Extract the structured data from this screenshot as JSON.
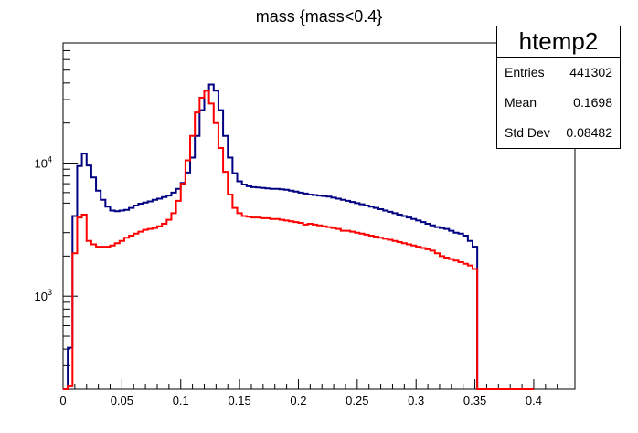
{
  "chart_data": {
    "type": "line",
    "title": "mass {mass<0.4}",
    "xlabel": "",
    "ylabel": "",
    "xlim": [
      0,
      0.435
    ],
    "ylim": [
      200,
      80000
    ],
    "y_scale": "log",
    "x_ticks": [
      0,
      0.05,
      0.1,
      0.15,
      0.2,
      0.25,
      0.3,
      0.35,
      0.4
    ],
    "x_tick_labels": [
      "0",
      "0.05",
      "0.1",
      "0.15",
      "0.2",
      "0.25",
      "0.3",
      "0.35",
      "0.4"
    ],
    "y_major_ticks": [
      1000,
      10000
    ],
    "y_tick_labels": [
      {
        "base": "10",
        "exp": "3"
      },
      {
        "base": "10",
        "exp": "4"
      }
    ],
    "grid": false,
    "bin_width": 0.004,
    "series": [
      {
        "color": "#000080",
        "values": [
          150,
          410,
          4000,
          9500,
          11800,
          9600,
          7800,
          6200,
          5300,
          4700,
          4400,
          4350,
          4400,
          4450,
          4600,
          4800,
          4950,
          5050,
          5150,
          5300,
          5400,
          5550,
          5700,
          6000,
          6400,
          7100,
          8500,
          11000,
          16000,
          25000,
          35000,
          39000,
          35000,
          25000,
          16000,
          11000,
          8400,
          7300,
          6900,
          6700,
          6600,
          6550,
          6500,
          6450,
          6400,
          6400,
          6350,
          6300,
          6200,
          6100,
          6000,
          5900,
          5800,
          5750,
          5700,
          5650,
          5600,
          5500,
          5400,
          5300,
          5200,
          5100,
          5000,
          4900,
          4800,
          4700,
          4600,
          4500,
          4400,
          4300,
          4200,
          4100,
          4000,
          3900,
          3800,
          3700,
          3600,
          3500,
          3400,
          3300,
          3250,
          3200,
          3100,
          3000,
          2950,
          2850,
          2600,
          2350,
          0,
          0,
          0,
          0,
          0,
          0,
          0,
          0,
          0,
          0,
          0,
          0
        ]
      },
      {
        "color": "#ff0000",
        "values": [
          60,
          210,
          2100,
          3900,
          4100,
          2600,
          2450,
          2350,
          2350,
          2350,
          2400,
          2500,
          2600,
          2750,
          2850,
          2950,
          3050,
          3150,
          3200,
          3250,
          3350,
          3500,
          3750,
          4200,
          5200,
          7000,
          10500,
          16000,
          24000,
          31000,
          35000,
          28000,
          20000,
          13000,
          8600,
          5800,
          4600,
          4200,
          4000,
          3950,
          3900,
          3900,
          3850,
          3850,
          3800,
          3800,
          3750,
          3700,
          3650,
          3600,
          3550,
          3450,
          3500,
          3450,
          3400,
          3350,
          3300,
          3250,
          3200,
          3100,
          3100,
          3050,
          3000,
          2950,
          2900,
          2850,
          2800,
          2750,
          2700,
          2650,
          2600,
          2550,
          2500,
          2450,
          2400,
          2350,
          2300,
          2250,
          2200,
          2100,
          2000,
          1950,
          1900,
          1850,
          1800,
          1750,
          1700,
          1600,
          0,
          0,
          0,
          0,
          0,
          0,
          0,
          0,
          0,
          0,
          0,
          0
        ]
      }
    ]
  },
  "stats": {
    "name": "htemp2",
    "entries_label": "Entries",
    "entries": "441302",
    "mean_label": "Mean",
    "mean": "0.1698",
    "stddev_label": "Std Dev",
    "stddev": "0.08482"
  }
}
